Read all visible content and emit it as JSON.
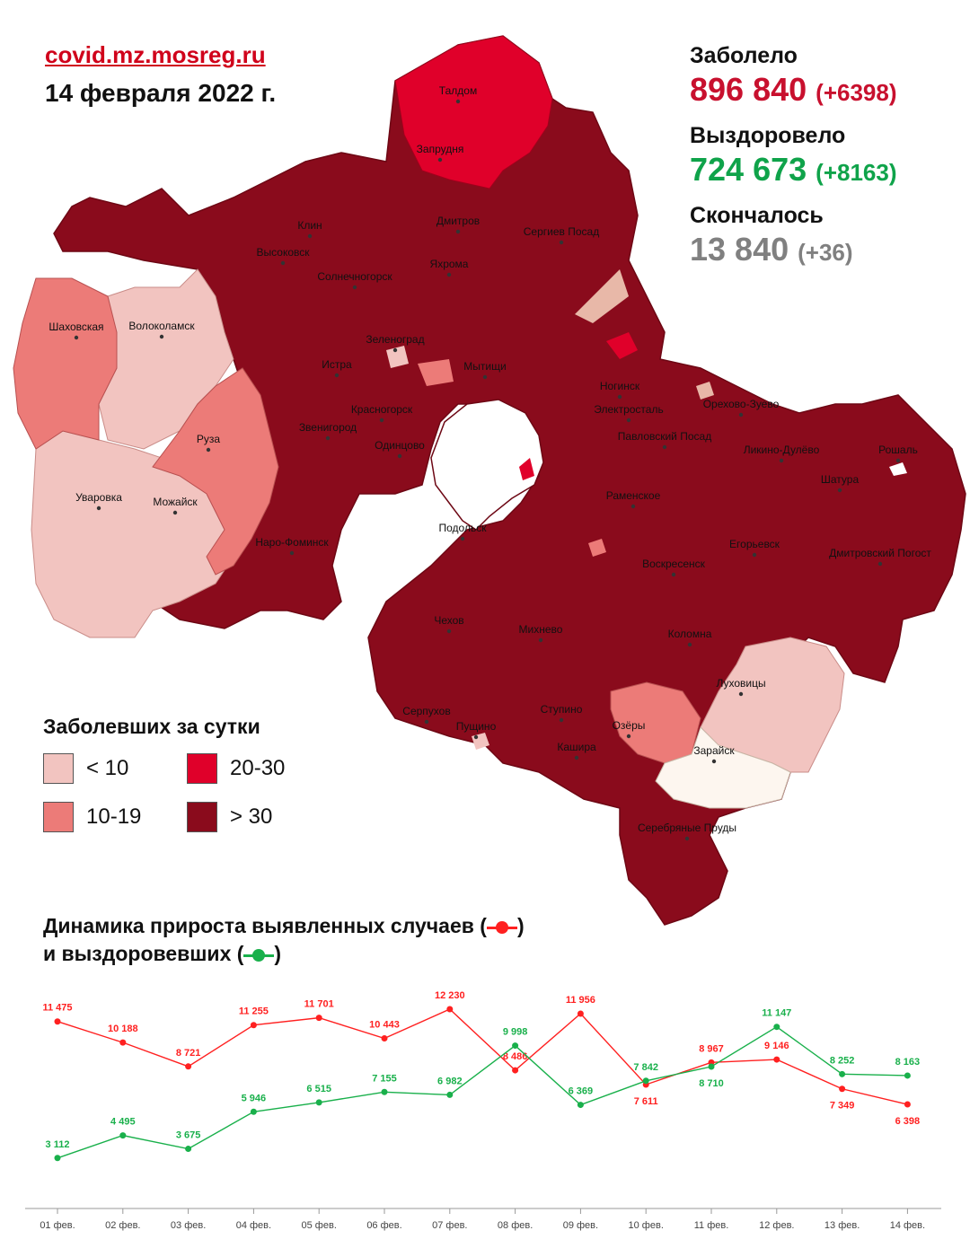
{
  "header": {
    "source": "covid.mz.mosreg.ru",
    "date": "14 февраля 2022 г."
  },
  "stats": {
    "infected": {
      "label": "Заболело",
      "value": "896 840",
      "delta": "(+6398)",
      "color": "#c8102e"
    },
    "recovered": {
      "label": "Выздоровело",
      "value": "724 673",
      "delta": "(+8163)",
      "color": "#0fa34a"
    },
    "died": {
      "label": "Скончалось",
      "value": "13 840",
      "delta": "(+36)",
      "color": "#808080"
    }
  },
  "map": {
    "city_labels": [
      "Талдом",
      "Запрудня",
      "Клин",
      "Высоковск",
      "Дмитров",
      "Яхрома",
      "Сергиев Посад",
      "Солнечногорск",
      "Шаховская",
      "Волоколамск",
      "Зеленоград",
      "Истра",
      "Мытищи",
      "Ногинск",
      "Электросталь",
      "Красногорск",
      "Звенигород",
      "Одинцово",
      "Павловский Посад",
      "Орехово-Зуево",
      "Ликино-Дулёво",
      "Рошаль",
      "Руза",
      "Уваровка",
      "Можайск",
      "Раменское",
      "Шатура",
      "Наро-Фоминск",
      "Подольск",
      "Егорьевск",
      "Воскресенск",
      "Дмитровский Погост",
      "Чехов",
      "Михнево",
      "Коломна",
      "Луховицы",
      "Серпухов",
      "Пущино",
      "Ступино",
      "Озёры",
      "Кашира",
      "Зарайск",
      "Серебряные Пруды"
    ]
  },
  "legend": {
    "title": "Заболевших за сутки",
    "items": [
      {
        "label": "< 10",
        "color": "#f2c4c0"
      },
      {
        "label": "20-30",
        "color": "#e0002a"
      },
      {
        "label": "10-19",
        "color": "#ec7b78"
      },
      {
        "label": "> 30",
        "color": "#8a0b1c"
      }
    ]
  },
  "chart_title": {
    "line1": "Динамика прироста выявленных случаев (",
    "line1_end": ")",
    "line2": "и выздоровевших (",
    "line2_end": ")"
  },
  "chart_data": {
    "type": "line",
    "title": "Динамика прироста выявленных случаев и выздоровевших",
    "categories": [
      "01 фев.",
      "02 фев.",
      "03 фев.",
      "04 фев.",
      "05 фев.",
      "06 фев.",
      "07 фев.",
      "08 фев.",
      "09 фев.",
      "10 фев.",
      "11 фев.",
      "12 фев.",
      "13 фев.",
      "14 фев."
    ],
    "series": [
      {
        "color": "#ff2020",
        "values": [
          11475,
          10188,
          8721,
          11255,
          11701,
          10443,
          12230,
          8486,
          11956,
          7611,
          8967,
          9146,
          7349,
          6398
        ],
        "labels": [
          "11 475",
          "10 188",
          "8 721",
          "11 255",
          "11 701",
          "10 443",
          "12 230",
          "8 486",
          "11 956",
          "7 611",
          "8 967",
          "9 146",
          "7 349",
          "6 398"
        ]
      },
      {
        "color": "#19b04b",
        "values": [
          3112,
          4495,
          3675,
          5946,
          6515,
          7155,
          6982,
          9998,
          6369,
          7842,
          8710,
          11147,
          8252,
          8163
        ],
        "labels": [
          "3 112",
          "4 495",
          "3 675",
          "5 946",
          "6 515",
          "7 155",
          "6 982",
          "9 998",
          "6 369",
          "7 842",
          "8 710",
          "11 147",
          "8 252",
          "8 163"
        ]
      }
    ],
    "ylim": [
      2000,
      13000
    ],
    "grid": false,
    "legend": "none"
  }
}
